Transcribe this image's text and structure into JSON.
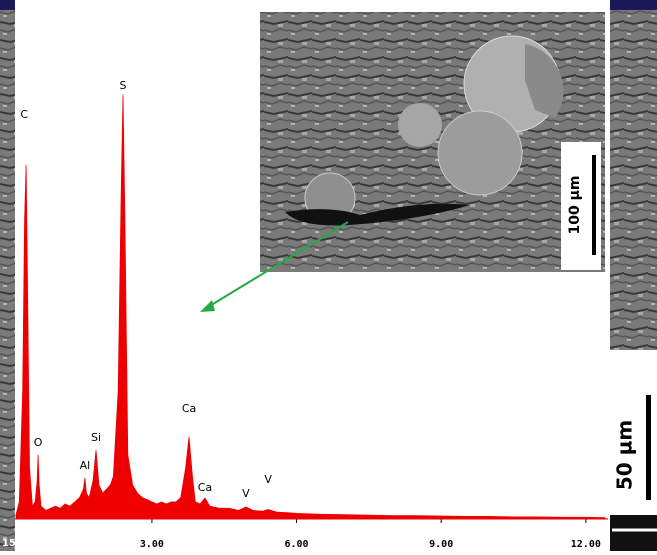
{
  "chart_data": {
    "type": "area",
    "x": [
      0.18,
      0.25,
      0.32,
      0.36,
      0.39,
      0.42,
      0.46,
      0.52,
      0.58,
      0.62,
      0.64,
      0.66,
      0.7,
      0.8,
      0.9,
      1.0,
      1.1,
      1.2,
      1.3,
      1.4,
      1.5,
      1.58,
      1.61,
      1.64,
      1.7,
      1.78,
      1.84,
      1.9,
      1.98,
      2.06,
      2.14,
      2.2,
      2.3,
      2.36,
      2.4,
      2.44,
      2.5,
      2.6,
      2.7,
      2.8,
      2.9,
      3.0,
      3.1,
      3.2,
      3.3,
      3.4,
      3.5,
      3.6,
      3.7,
      3.77,
      3.84,
      3.9,
      4.0,
      4.1,
      4.2,
      4.4,
      4.6,
      4.8,
      4.95,
      5.1,
      5.3,
      5.41,
      5.6,
      5.8,
      6.0,
      6.5,
      7.0,
      7.5,
      8.0,
      8.5,
      9.0,
      9.5,
      10.0,
      10.5,
      11.0,
      11.5,
      12.0,
      12.4
    ],
    "values": [
      1,
      4,
      30,
      70,
      82.8,
      55,
      12,
      3,
      4,
      9,
      15,
      8,
      3,
      2,
      2.5,
      3,
      2.5,
      3.5,
      3,
      4,
      5,
      7,
      9.6,
      6,
      5,
      9,
      16.1,
      8,
      6,
      7,
      8,
      10,
      30,
      75,
      99.2,
      70,
      15,
      8,
      6,
      5,
      4.5,
      4,
      3.5,
      4,
      3.5,
      4,
      4,
      5,
      12,
      19.2,
      10,
      4,
      3.5,
      4.9,
      3,
      2.5,
      2.5,
      2,
      2.8,
      2,
      1.8,
      2.2,
      1.6,
      1.5,
      1.3,
      1.1,
      1,
      0.9,
      0.8,
      0.8,
      0.7,
      0.6,
      0.6,
      0.5,
      0.5,
      0.4,
      0.4,
      0.3
    ],
    "color": "#ee0000",
    "xlim": [
      0.16,
      12.46
    ],
    "ylim": [
      0,
      105
    ],
    "xticks": [
      {
        "value": 3,
        "label": "3.00"
      },
      {
        "value": 6,
        "label": "6.00"
      },
      {
        "value": 9,
        "label": "9.00"
      },
      {
        "value": 12,
        "label": "12.00"
      }
    ],
    "annotations": [
      {
        "text": "C",
        "x": 0.35,
        "y": 94.5
      },
      {
        "text": "S",
        "x": 2.4,
        "y": 101.3
      },
      {
        "text": "O",
        "x": 0.64,
        "y": 17.8
      },
      {
        "text": "Al",
        "x": 1.61,
        "y": 12.4
      },
      {
        "text": "Si",
        "x": 1.84,
        "y": 18.9
      },
      {
        "text": "Ca",
        "x": 3.77,
        "y": 25.7
      },
      {
        "text": "Ca",
        "x": 4.1,
        "y": 7.2
      },
      {
        "text": "V",
        "x": 4.95,
        "y": 5.8
      },
      {
        "text": "V",
        "x": 5.41,
        "y": 9.1
      }
    ]
  },
  "image_labels": {
    "inset_scale": "100 µm",
    "main_scale": "50 µm",
    "corner": "15"
  }
}
